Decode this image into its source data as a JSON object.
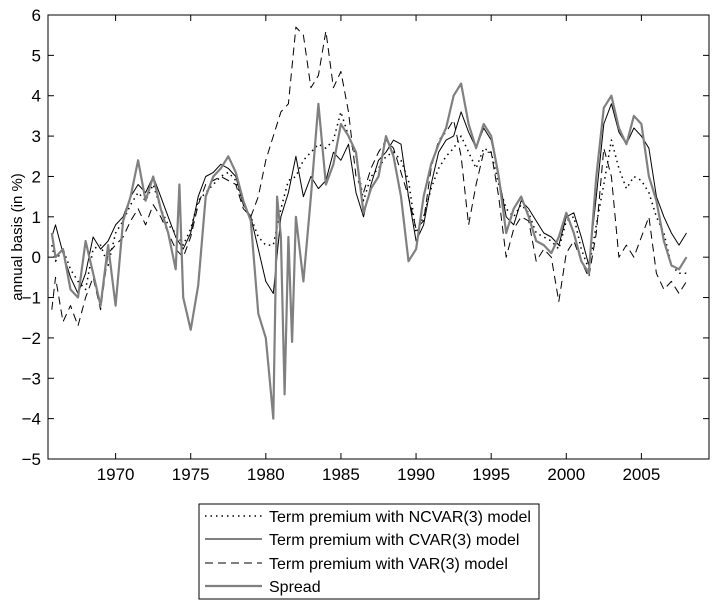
{
  "chart_data": {
    "type": "line",
    "title": "",
    "xlabel": "",
    "ylabel": "annual basis (in %)",
    "xlim": [
      1965.5,
      2009.5
    ],
    "ylim": [
      -5,
      6
    ],
    "xticks": [
      1970,
      1975,
      1980,
      1985,
      1990,
      1995,
      2000,
      2005
    ],
    "xtick_labels": [
      "1970",
      "1975",
      "1980",
      "1985",
      "1990",
      "1995",
      "2000",
      "2005"
    ],
    "yticks": [
      -5,
      -4,
      -3,
      -2,
      -1,
      0,
      1,
      2,
      3,
      4,
      5,
      6
    ],
    "ytick_labels": [
      "−5",
      "−4",
      "−3",
      "−2",
      "−1",
      "0",
      "1",
      "2",
      "3",
      "4",
      "5",
      "6"
    ],
    "grid": false,
    "legend_position": "bottom, below axes",
    "series": [
      {
        "name": "Term premium with NCVAR(3) model",
        "color": "#000000",
        "style": "dotted",
        "x": [
          1965.75,
          1966,
          1966.5,
          1967,
          1967.5,
          1968,
          1968.5,
          1969,
          1969.5,
          1970,
          1970.5,
          1971,
          1971.5,
          1972,
          1972.5,
          1973,
          1973.5,
          1974,
          1974.5,
          1975,
          1975.5,
          1976,
          1976.5,
          1977,
          1977.5,
          1978,
          1978.5,
          1979,
          1979.5,
          1980,
          1980.5,
          1981,
          1981.5,
          1982,
          1982.5,
          1983,
          1983.5,
          1984,
          1984.5,
          1985,
          1985.5,
          1986,
          1986.5,
          1987,
          1987.5,
          1988,
          1988.5,
          1989,
          1989.5,
          1990,
          1990.5,
          1991,
          1991.5,
          1992,
          1992.5,
          1993,
          1993.5,
          1994,
          1994.5,
          1995,
          1995.5,
          1996,
          1996.5,
          1997,
          1997.5,
          1998,
          1998.5,
          1999,
          1999.5,
          2000,
          2000.5,
          2001,
          2001.5,
          2002,
          2002.5,
          2003,
          2003.5,
          2004,
          2004.5,
          2005,
          2005.5,
          2006,
          2006.5,
          2007,
          2007.5,
          2008
        ],
        "y": [
          0.3,
          -0.1,
          0.2,
          -0.3,
          -0.6,
          -0.8,
          0.2,
          0.3,
          -0.2,
          0.6,
          0.9,
          1.3,
          1.6,
          1.4,
          1.8,
          1.2,
          0.8,
          0.6,
          0.3,
          0.7,
          1.4,
          1.6,
          1.8,
          2.0,
          2.1,
          1.9,
          1.3,
          1.0,
          0.5,
          0.3,
          0.3,
          1.2,
          1.9,
          2.0,
          2.4,
          2.6,
          2.8,
          2.7,
          2.9,
          3.6,
          3.0,
          2.5,
          1.4,
          2.0,
          2.2,
          2.5,
          2.6,
          2.4,
          1.9,
          0.6,
          1.0,
          1.7,
          2.2,
          2.5,
          2.7,
          3.0,
          2.6,
          2.2,
          2.7,
          2.6,
          1.8,
          1.2,
          1.0,
          1.3,
          1.1,
          0.6,
          0.5,
          0.4,
          0.2,
          0.9,
          1.0,
          0.2,
          -0.3,
          0.8,
          1.8,
          2.9,
          2.2,
          1.7,
          2.0,
          1.9,
          1.6,
          1.0,
          0.6,
          -0.2,
          -0.4,
          -0.4
        ]
      },
      {
        "name": "Term premium with CVAR(3) model",
        "color": "#000000",
        "style": "solid",
        "x": [
          1965.75,
          1966,
          1966.5,
          1967,
          1967.5,
          1968,
          1968.5,
          1969,
          1969.5,
          1970,
          1970.5,
          1971,
          1971.5,
          1972,
          1972.5,
          1973,
          1973.5,
          1974,
          1974.5,
          1975,
          1975.5,
          1976,
          1976.5,
          1977,
          1977.5,
          1978,
          1978.5,
          1979,
          1979.5,
          1980,
          1980.5,
          1981,
          1981.5,
          1982,
          1982.5,
          1983,
          1983.5,
          1984,
          1984.5,
          1985,
          1985.5,
          1986,
          1986.5,
          1987,
          1987.5,
          1988,
          1988.5,
          1989,
          1989.5,
          1990,
          1990.5,
          1991,
          1991.5,
          1992,
          1992.5,
          1993,
          1993.5,
          1994,
          1994.5,
          1995,
          1995.5,
          1996,
          1996.5,
          1997,
          1997.5,
          1998,
          1998.5,
          1999,
          1999.5,
          2000,
          2000.5,
          2001,
          2001.5,
          2002,
          2002.5,
          2003,
          2003.5,
          2004,
          2004.5,
          2005,
          2005.5,
          2006,
          2006.5,
          2007,
          2007.5,
          2008
        ],
        "y": [
          0.5,
          0.8,
          0.1,
          -0.5,
          -0.9,
          -0.4,
          0.5,
          0.2,
          0.4,
          0.8,
          1.0,
          1.5,
          1.8,
          1.6,
          2.0,
          1.5,
          1.0,
          0.5,
          0.2,
          0.6,
          1.5,
          2.0,
          2.1,
          2.3,
          2.2,
          2.0,
          1.3,
          1.0,
          0.2,
          -0.6,
          -0.9,
          1.0,
          1.6,
          2.5,
          1.5,
          2.0,
          1.7,
          1.9,
          2.6,
          2.4,
          2.8,
          1.6,
          1.0,
          1.8,
          2.4,
          2.6,
          2.9,
          2.8,
          1.5,
          0.4,
          0.8,
          1.8,
          2.6,
          2.9,
          3.0,
          3.6,
          3.1,
          2.7,
          3.2,
          2.9,
          2.0,
          1.0,
          0.8,
          1.4,
          1.2,
          0.9,
          0.6,
          0.5,
          0.3,
          1.0,
          1.1,
          0.5,
          -0.2,
          1.5,
          3.3,
          3.8,
          3.1,
          2.8,
          3.2,
          3.0,
          2.7,
          1.5,
          1.0,
          0.6,
          0.3,
          0.6
        ]
      },
      {
        "name": "Term premium with VAR(3) model",
        "color": "#000000",
        "style": "dashed",
        "x": [
          1965.75,
          1966,
          1966.5,
          1967,
          1967.5,
          1968,
          1968.5,
          1969,
          1969.5,
          1970,
          1970.5,
          1971,
          1971.5,
          1972,
          1972.5,
          1973,
          1973.5,
          1974,
          1974.5,
          1975,
          1975.5,
          1976,
          1976.5,
          1977,
          1977.5,
          1978,
          1978.5,
          1979,
          1979.5,
          1980,
          1980.5,
          1981,
          1981.5,
          1982,
          1982.5,
          1983,
          1983.5,
          1984,
          1984.5,
          1985,
          1985.5,
          1986,
          1986.5,
          1987,
          1987.5,
          1988,
          1988.5,
          1989,
          1989.5,
          1990,
          1990.5,
          1991,
          1991.5,
          1992,
          1992.5,
          1993,
          1993.5,
          1994,
          1994.5,
          1995,
          1995.5,
          1996,
          1996.5,
          1997,
          1997.5,
          1998,
          1998.5,
          1999,
          1999.5,
          2000,
          2000.5,
          2001,
          2001.5,
          2002,
          2002.5,
          2003,
          2003.5,
          2004,
          2004.5,
          2005,
          2005.5,
          2006,
          2006.5,
          2007,
          2007.5,
          2008
        ],
        "y": [
          -1.3,
          -0.5,
          -1.6,
          -1.2,
          -1.7,
          -1.0,
          -0.5,
          -1.3,
          0.1,
          0.3,
          0.5,
          0.9,
          1.2,
          0.8,
          1.3,
          1.0,
          0.6,
          0.2,
          0.0,
          0.5,
          1.3,
          1.8,
          1.9,
          2.0,
          1.9,
          1.8,
          1.2,
          1.0,
          1.5,
          2.4,
          3.0,
          3.6,
          3.8,
          5.7,
          5.5,
          4.2,
          4.5,
          5.6,
          4.2,
          4.6,
          3.6,
          2.0,
          1.6,
          2.2,
          2.6,
          2.9,
          2.7,
          2.1,
          1.5,
          0.7,
          0.9,
          2.2,
          2.9,
          3.1,
          3.4,
          2.5,
          0.8,
          1.8,
          2.6,
          2.6,
          1.5,
          0.0,
          0.7,
          1.0,
          0.9,
          -0.1,
          0.2,
          0.0,
          -1.1,
          0.1,
          0.4,
          -0.1,
          -0.5,
          0.6,
          2.7,
          2.0,
          0.0,
          0.3,
          0.0,
          0.5,
          1.0,
          -0.4,
          -0.8,
          -0.6,
          -0.9,
          -0.6
        ]
      },
      {
        "name": "Spread",
        "color": "#808080",
        "style": "solid",
        "x": [
          1965.75,
          1966,
          1966.5,
          1967,
          1967.5,
          1968,
          1968.5,
          1969,
          1969.5,
          1970,
          1970.5,
          1971,
          1971.5,
          1972,
          1972.5,
          1973,
          1973.5,
          1974,
          1974.25,
          1974.5,
          1975,
          1975.5,
          1976,
          1976.5,
          1977,
          1977.5,
          1978,
          1978.5,
          1979,
          1979.5,
          1980,
          1980.25,
          1980.5,
          1980.75,
          1981,
          1981.25,
          1981.5,
          1981.75,
          1982,
          1982.5,
          1983,
          1983.5,
          1984,
          1984.5,
          1985,
          1985.5,
          1986,
          1986.5,
          1987,
          1987.5,
          1988,
          1988.5,
          1989,
          1989.5,
          1990,
          1990.5,
          1991,
          1991.5,
          1992,
          1992.5,
          1993,
          1993.5,
          1994,
          1994.5,
          1995,
          1995.5,
          1996,
          1996.5,
          1997,
          1997.5,
          1998,
          1998.5,
          1999,
          1999.5,
          2000,
          2000.5,
          2001,
          2001.5,
          2002,
          2002.5,
          2003,
          2003.5,
          2004,
          2004.5,
          2005,
          2005.5,
          2006,
          2006.5,
          2007,
          2007.5,
          2008
        ],
        "y": [
          0.6,
          0.0,
          0.2,
          -0.8,
          -1.0,
          0.4,
          -0.4,
          -1.2,
          0.3,
          -1.2,
          0.9,
          1.5,
          2.4,
          1.4,
          2.0,
          1.2,
          0.6,
          -0.3,
          1.8,
          -1.0,
          -1.8,
          -0.7,
          1.5,
          2.0,
          2.2,
          2.5,
          2.1,
          1.4,
          0.9,
          -1.4,
          -2.0,
          -3.0,
          -4.0,
          1.5,
          0.5,
          -3.4,
          0.5,
          -2.1,
          1.0,
          -0.6,
          1.5,
          3.8,
          1.8,
          2.3,
          3.3,
          3.0,
          2.6,
          1.1,
          1.7,
          2.0,
          3.0,
          2.5,
          1.5,
          -0.1,
          0.2,
          1.5,
          2.3,
          2.8,
          3.2,
          4.0,
          4.3,
          3.3,
          2.7,
          3.3,
          3.0,
          2.0,
          0.6,
          1.2,
          1.5,
          1.0,
          0.4,
          0.3,
          0.1,
          0.5,
          1.1,
          0.6,
          -0.1,
          -0.4,
          2.0,
          3.7,
          4.0,
          3.2,
          2.8,
          3.5,
          3.3,
          2.0,
          1.4,
          0.4,
          -0.2,
          -0.3,
          0.0
        ]
      }
    ]
  }
}
